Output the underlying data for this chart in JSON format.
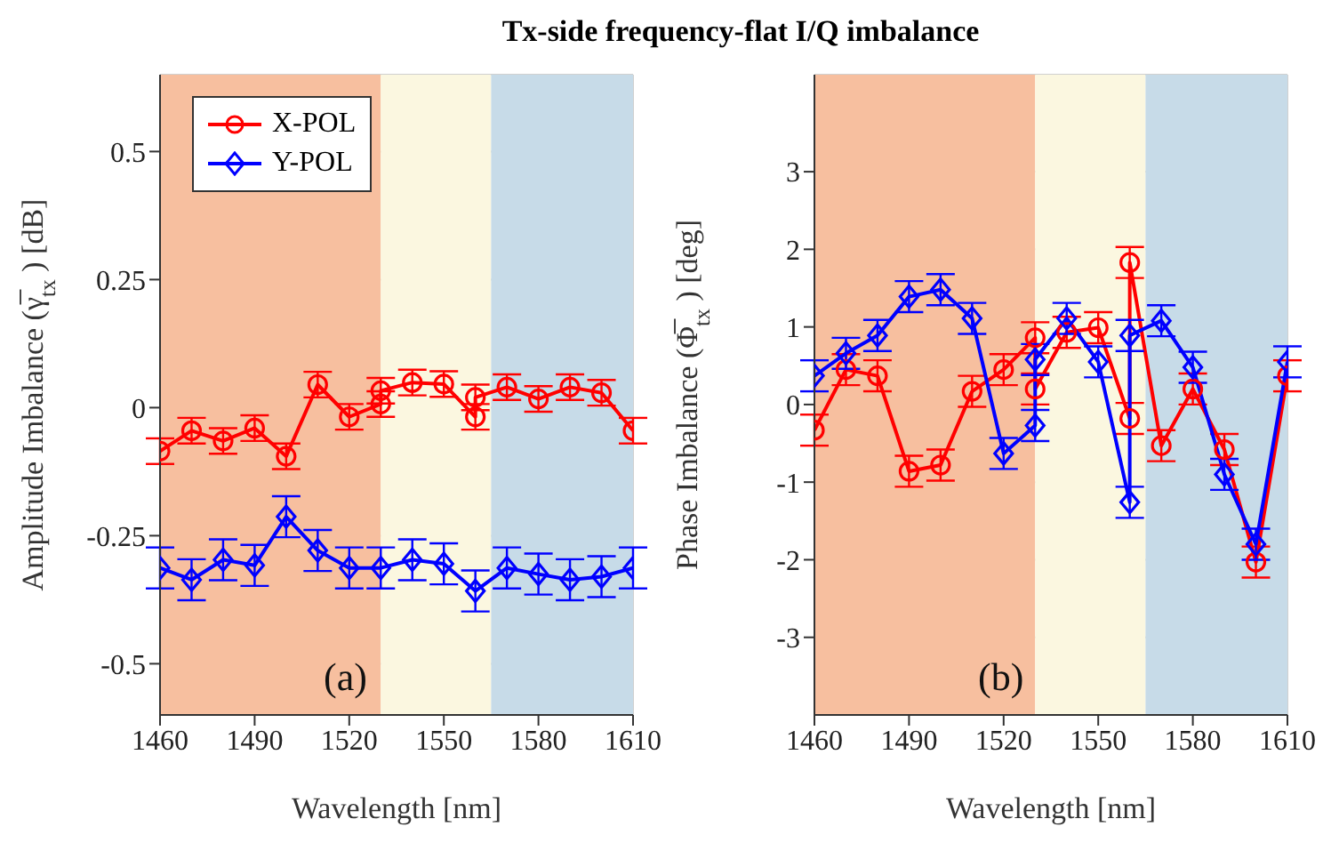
{
  "chart_data": [
    {
      "type": "line",
      "title": "Tx-side frequency-flat I/Q imbalance",
      "xlabel": "Wavelength [nm]",
      "ylabel": "Amplitude Imbalance (γ̅$_{tx}$) [dB]",
      "xlim": [
        1460,
        1610
      ],
      "xticks": [
        1460,
        1490,
        1520,
        1550,
        1580,
        1610
      ],
      "ylim": [
        -0.6,
        0.65
      ],
      "yticks": [
        -0.5,
        -0.25,
        0,
        0.25,
        0.5
      ],
      "grid": true,
      "legend": "top left",
      "line_style": "solid",
      "annotations": [
        "(a)"
      ],
      "bands": [
        {
          "axis": "x",
          "from": 1460,
          "to": 1530,
          "color": "#f7bf9f"
        },
        {
          "axis": "x",
          "from": 1530,
          "to": 1565,
          "color": "#fbf7e0"
        },
        {
          "axis": "x",
          "from": 1565,
          "to": 1610,
          "color": "#c7dbe8"
        }
      ],
      "series": [
        {
          "name": "X-POL",
          "color": "#ff0000",
          "marker": "circle",
          "x": [
            1460,
            1470,
            1480,
            1490,
            1500,
            1510,
            1520,
            1530,
            1530,
            1540,
            1550,
            1560,
            1560,
            1570,
            1580,
            1590,
            1600,
            1610
          ],
          "values": [
            -0.085,
            -0.045,
            -0.065,
            -0.04,
            -0.095,
            0.045,
            -0.018,
            0.007,
            0.033,
            0.049,
            0.046,
            -0.018,
            0.02,
            0.04,
            0.017,
            0.04,
            0.029,
            -0.045
          ],
          "errors": [
            0.025,
            0.025,
            0.025,
            0.025,
            0.025,
            0.025,
            0.025,
            0.025,
            0.025,
            0.025,
            0.025,
            0.025,
            0.025,
            0.025,
            0.025,
            0.025,
            0.025,
            0.025
          ]
        },
        {
          "name": "Y-POL",
          "color": "#0000ff",
          "marker": "diamond",
          "x": [
            1460,
            1470,
            1480,
            1490,
            1500,
            1510,
            1520,
            1530,
            1540,
            1550,
            1560,
            1570,
            1580,
            1590,
            1600,
            1610
          ],
          "values": [
            -0.313,
            -0.336,
            -0.297,
            -0.308,
            -0.213,
            -0.279,
            -0.313,
            -0.313,
            -0.297,
            -0.305,
            -0.358,
            -0.313,
            -0.325,
            -0.336,
            -0.33,
            -0.313
          ],
          "errors": [
            0.04,
            0.04,
            0.04,
            0.04,
            0.04,
            0.04,
            0.04,
            0.04,
            0.04,
            0.04,
            0.04,
            0.04,
            0.04,
            0.04,
            0.04,
            0.04
          ]
        }
      ]
    },
    {
      "type": "line",
      "xlabel": "Wavelength [nm]",
      "ylabel": "Phase Imbalance (Φ̅$_{tx}$) [deg]",
      "xlim": [
        1460,
        1610
      ],
      "xticks": [
        1460,
        1490,
        1520,
        1550,
        1580,
        1610
      ],
      "ylim": [
        -4,
        4.25
      ],
      "yticks": [
        -3,
        -2,
        -1,
        0,
        1,
        2,
        3
      ],
      "grid": true,
      "line_style": "solid",
      "annotations": [
        "(b)"
      ],
      "bands": [
        {
          "axis": "x",
          "from": 1460,
          "to": 1530,
          "color": "#f7bf9f"
        },
        {
          "axis": "x",
          "from": 1530,
          "to": 1565,
          "color": "#fbf7e0"
        },
        {
          "axis": "x",
          "from": 1565,
          "to": 1610,
          "color": "#c7dbe8"
        }
      ],
      "series": [
        {
          "color": "#ff0000",
          "marker": "circle",
          "x": [
            1460,
            1470,
            1480,
            1490,
            1500,
            1510,
            1520,
            1530,
            1530,
            1540,
            1550,
            1560,
            1560,
            1570,
            1580,
            1590,
            1600,
            1610
          ],
          "values": [
            -0.33,
            0.45,
            0.37,
            -0.86,
            -0.78,
            0.17,
            0.45,
            0.86,
            0.2,
            0.93,
            0.99,
            -0.18,
            1.83,
            -0.53,
            0.2,
            -0.58,
            -2.03,
            0.37
          ],
          "errors": [
            0.2,
            0.2,
            0.2,
            0.2,
            0.2,
            0.2,
            0.2,
            0.2,
            0.2,
            0.2,
            0.2,
            0.2,
            0.2,
            0.2,
            0.2,
            0.2,
            0.2,
            0.2
          ]
        },
        {
          "color": "#0000ff",
          "marker": "diamond",
          "x": [
            1460,
            1470,
            1480,
            1490,
            1500,
            1510,
            1520,
            1530,
            1530,
            1540,
            1550,
            1560,
            1560,
            1570,
            1580,
            1590,
            1600,
            1610
          ],
          "values": [
            0.37,
            0.66,
            0.89,
            1.39,
            1.48,
            1.11,
            -0.63,
            -0.27,
            0.58,
            1.11,
            0.55,
            -1.26,
            0.89,
            1.08,
            0.48,
            -0.9,
            -1.8,
            0.55
          ],
          "errors": [
            0.2,
            0.2,
            0.2,
            0.2,
            0.2,
            0.2,
            0.2,
            0.2,
            0.2,
            0.2,
            0.2,
            0.2,
            0.2,
            0.2,
            0.2,
            0.2,
            0.2,
            0.2
          ]
        }
      ]
    }
  ]
}
